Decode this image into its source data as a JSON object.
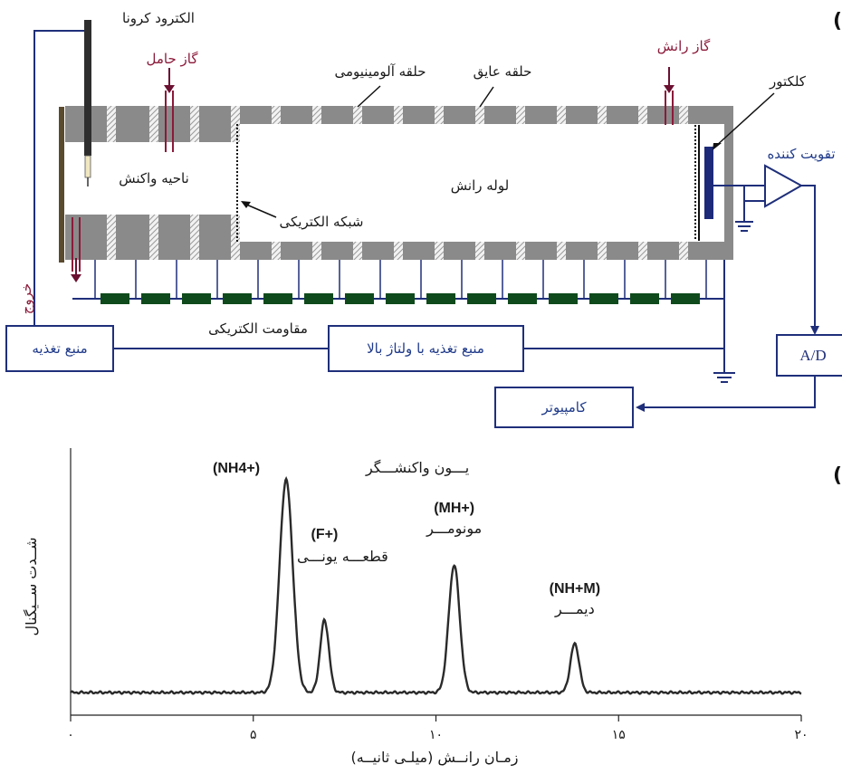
{
  "schematic": {
    "panel_label": "(الف)",
    "labels": {
      "corona_electrode": "الکترود کرونا",
      "carrier_gas": "گاز حامل",
      "aluminum_ring": "حلقه آلومینیومی",
      "insulating_ring": "حلقه عایق",
      "drift_gas": "گاز رانش",
      "collector": "کلکتور",
      "amplifier": "تقویت کننده",
      "reaction_region": "ناحیه واکنش",
      "drift_tube": "لوله رانش",
      "electric_grid": "شبکه الکتریکی",
      "outlet": "خروج",
      "electric_resistance": "مقاومت الکتریکی",
      "power_supply": "منبع تغذیه",
      "hv_power_supply": "منبع تغذیه با ولتاژ بالا",
      "adc": "A/D",
      "computer": "کامپیوتر"
    },
    "colors": {
      "line_blue": "#1f2f7a",
      "gas_red": "#8b1a3a",
      "tube_gray": "#8a8a8a",
      "resistor_green": "#0f4a1c",
      "collector_navy": "#1d2a7a"
    }
  },
  "chart_data": {
    "type": "line",
    "panel_label": "(ب)",
    "xlabel": "زمـان رانــش (میلـی ثانیــه)",
    "ylabel": "شــدت ســیگنال",
    "xlim": [
      0,
      20
    ],
    "x_ticks": [
      0,
      5,
      10,
      15,
      20
    ],
    "x_tick_labels": [
      "۰",
      "۵",
      "۱۰",
      "۱۵",
      "۲۰"
    ],
    "baseline": 0,
    "peaks": [
      {
        "x": 5.9,
        "height": 100,
        "width": 0.18,
        "formula": "(NH4+)",
        "name": "یـــون واکنشـــگر"
      },
      {
        "x": 6.95,
        "height": 34,
        "width": 0.12,
        "formula": "(F+)",
        "name": "قطعـــه یونـــی"
      },
      {
        "x": 10.5,
        "height": 60,
        "width": 0.15,
        "formula": "(MH+)",
        "name": "مونومـــر"
      },
      {
        "x": 13.8,
        "height": 23,
        "width": 0.12,
        "formula": "(NH+M)",
        "name": "دیمـــر"
      }
    ],
    "grid": false
  }
}
